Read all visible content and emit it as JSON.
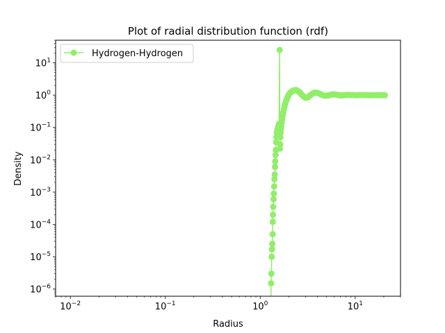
{
  "chart_data": {
    "type": "line",
    "title": "Plot of radial distribution function (rdf)",
    "xlabel": "Radius",
    "ylabel": "Density",
    "xscale": "log",
    "yscale": "log",
    "xlim": [
      0.007,
      30
    ],
    "ylim": [
      6e-07,
      50
    ],
    "grid": false,
    "legend_position": "top-left",
    "color": "#90ee68",
    "x_ticks": [
      {
        "value": 0.01,
        "base": "10",
        "exp": "−2"
      },
      {
        "value": 0.1,
        "base": "10",
        "exp": "−1"
      },
      {
        "value": 1,
        "base": "10",
        "exp": "0"
      },
      {
        "value": 10,
        "base": "10",
        "exp": "1"
      }
    ],
    "y_ticks": [
      {
        "value": 1e-06,
        "base": "10",
        "exp": "−6"
      },
      {
        "value": 1e-05,
        "base": "10",
        "exp": "−5"
      },
      {
        "value": 0.0001,
        "base": "10",
        "exp": "−4"
      },
      {
        "value": 0.001,
        "base": "10",
        "exp": "−3"
      },
      {
        "value": 0.01,
        "base": "10",
        "exp": "−2"
      },
      {
        "value": 0.1,
        "base": "10",
        "exp": "−1"
      },
      {
        "value": 1,
        "base": "10",
        "exp": "0"
      },
      {
        "value": 10,
        "base": "10",
        "exp": "1"
      }
    ],
    "series": [
      {
        "name": "Hydrogen-Hydrogen",
        "points": [
          [
            1.3,
            0
          ],
          [
            1.3,
            1.5e-06
          ],
          [
            1.31,
            3e-06
          ],
          [
            1.32,
            1e-05
          ],
          [
            1.33,
            1.7e-05
          ],
          [
            1.34,
            2.5e-05
          ],
          [
            1.35,
            5e-05
          ],
          [
            1.355,
            0.00012
          ],
          [
            1.36,
            0.0002
          ],
          [
            1.37,
            0.00035
          ],
          [
            1.38,
            0.0006
          ],
          [
            1.39,
            0.0009
          ],
          [
            1.4,
            0.0015
          ],
          [
            1.41,
            0.0025
          ],
          [
            1.42,
            0.0035
          ],
          [
            1.43,
            0.006
          ],
          [
            1.44,
            0.009
          ],
          [
            1.45,
            0.014
          ],
          [
            1.46,
            0.02
          ],
          [
            1.47,
            0.035
          ],
          [
            1.48,
            0.05
          ],
          [
            1.49,
            0.07
          ],
          [
            1.52,
            0.09
          ],
          [
            1.55,
            0.11
          ],
          [
            1.58,
            0.13
          ],
          [
            1.6,
            25
          ],
          [
            1.61,
            0.022
          ],
          [
            1.62,
            0.03
          ],
          [
            1.63,
            0.05
          ],
          [
            1.64,
            0.07
          ],
          [
            1.65,
            0.09
          ],
          [
            1.66,
            0.11
          ],
          [
            1.68,
            0.14
          ],
          [
            1.7,
            0.18
          ],
          [
            1.72,
            0.23
          ],
          [
            1.74,
            0.28
          ],
          [
            1.77,
            0.35
          ],
          [
            1.8,
            0.43
          ],
          [
            1.83,
            0.52
          ],
          [
            1.86,
            0.62
          ],
          [
            1.9,
            0.74
          ],
          [
            1.94,
            0.86
          ],
          [
            1.98,
            0.98
          ],
          [
            2.02,
            1.08
          ],
          [
            2.07,
            1.18
          ],
          [
            2.12,
            1.26
          ],
          [
            2.17,
            1.33
          ],
          [
            2.22,
            1.38
          ],
          [
            2.28,
            1.42
          ],
          [
            2.34,
            1.43
          ],
          [
            2.4,
            1.42
          ],
          [
            2.46,
            1.38
          ],
          [
            2.52,
            1.32
          ],
          [
            2.58,
            1.24
          ],
          [
            2.65,
            1.15
          ],
          [
            2.72,
            1.06
          ],
          [
            2.8,
            0.97
          ],
          [
            2.88,
            0.9
          ],
          [
            2.96,
            0.85
          ],
          [
            3.04,
            0.83
          ],
          [
            3.12,
            0.84
          ],
          [
            3.21,
            0.88
          ],
          [
            3.3,
            0.94
          ],
          [
            3.4,
            1.01
          ],
          [
            3.5,
            1.08
          ],
          [
            3.6,
            1.14
          ],
          [
            3.7,
            1.18
          ],
          [
            3.82,
            1.2
          ],
          [
            3.94,
            1.19
          ],
          [
            4.06,
            1.16
          ],
          [
            4.2,
            1.11
          ],
          [
            4.35,
            1.06
          ],
          [
            4.5,
            1.01
          ],
          [
            4.66,
            0.98
          ],
          [
            4.83,
            0.96
          ],
          [
            5.0,
            0.96
          ],
          [
            5.2,
            0.98
          ],
          [
            5.4,
            1.01
          ],
          [
            5.6,
            1.04
          ],
          [
            5.85,
            1.06
          ],
          [
            6.1,
            1.05
          ],
          [
            6.4,
            1.03
          ],
          [
            6.7,
            1.0
          ],
          [
            7.0,
            0.98
          ],
          [
            7.4,
            0.98
          ],
          [
            7.8,
            1.0
          ],
          [
            8.2,
            1.02
          ],
          [
            8.7,
            1.02
          ],
          [
            9.2,
            1.01
          ],
          [
            9.8,
            1.0
          ],
          [
            10.4,
            0.99
          ],
          [
            11.0,
            1.0
          ],
          [
            11.7,
            1.01
          ],
          [
            12.4,
            1.01
          ],
          [
            13.2,
            1.0
          ],
          [
            14.0,
            0.99
          ],
          [
            15.0,
            1.0
          ],
          [
            16.0,
            1.0
          ],
          [
            17.0,
            1.0
          ],
          [
            18.0,
            1.0
          ],
          [
            19.0,
            1.0
          ],
          [
            20.0,
            1.0
          ],
          [
            20.5,
            1.0
          ]
        ]
      }
    ]
  }
}
